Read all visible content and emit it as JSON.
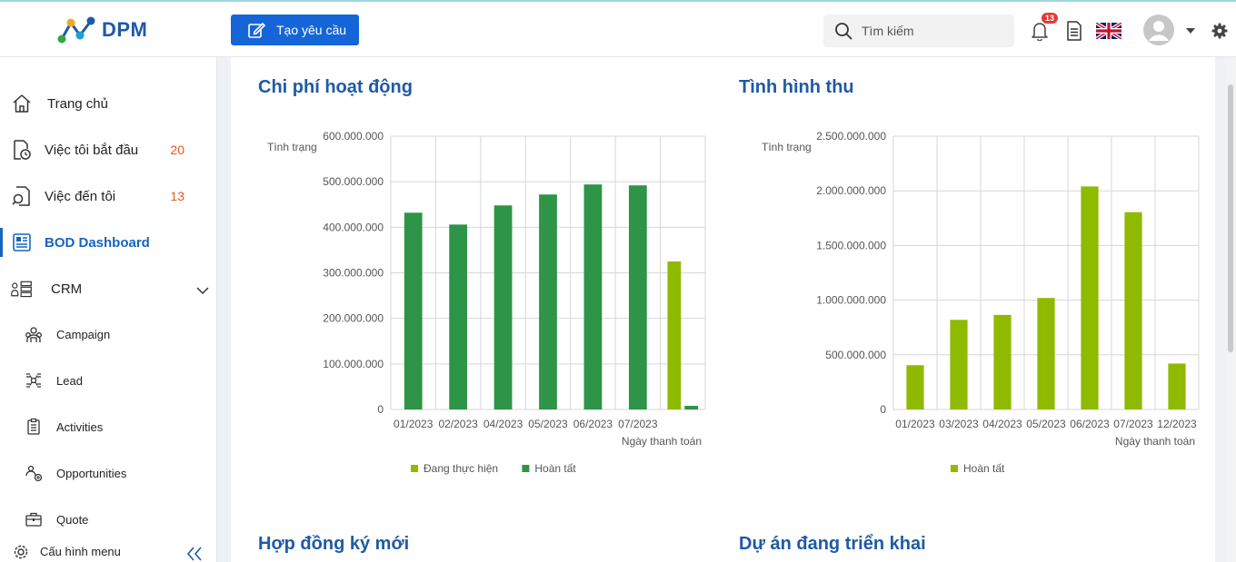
{
  "header": {
    "app_name": "DPM",
    "create_button_label": "Tạo yêu cầu",
    "search_placeholder": "Tìm kiếm",
    "notification_count": "13"
  },
  "sidebar": {
    "items": [
      {
        "label": "Trang chủ",
        "count": "",
        "icon": "home-icon"
      },
      {
        "label": "Việc tôi bắt đầu",
        "count": "20",
        "icon": "file-clock-icon"
      },
      {
        "label": "Việc đến tôi",
        "count": "13",
        "icon": "file-search-icon"
      },
      {
        "label": "BOD Dashboard",
        "count": "",
        "icon": "dashboard-icon"
      },
      {
        "label": "CRM",
        "count": "",
        "icon": "crm-icon"
      }
    ],
    "crm_subitems": [
      {
        "label": "Campaign",
        "icon": "campaign-icon"
      },
      {
        "label": "Lead",
        "icon": "lead-icon"
      },
      {
        "label": "Activities",
        "icon": "activities-icon"
      },
      {
        "label": "Opportunities",
        "icon": "opportunities-icon"
      },
      {
        "label": "Quote",
        "icon": "quote-icon"
      }
    ],
    "footer_label": "Cấu hình menu"
  },
  "cards": {
    "chi_phi_title": "Chi phí hoạt động",
    "tinh_hinh_thu_title": "Tình hình thu",
    "hop_dong_title": "Hợp đồng ký mới",
    "du_an_title": "Dự án đang triển khai"
  },
  "colors": {
    "dark_green": "#2e9447",
    "light_green": "#8fba00",
    "title_blue": "#1f5aa6",
    "accent_blue": "#1565d8"
  },
  "chart_data": [
    {
      "type": "bar",
      "title": "Chi phí hoạt động",
      "ylabel": "Tình trạng",
      "xlabel": "Ngày thanh toán",
      "ylim": [
        0,
        600000000
      ],
      "yticks": [
        0,
        100000000,
        200000000,
        300000000,
        400000000,
        500000000,
        600000000
      ],
      "ytick_labels": [
        "0",
        "100.000.000",
        "200.000.000",
        "300.000.000",
        "400.000.000",
        "500.000.000",
        "600.000.000"
      ],
      "categories": [
        "01/2023",
        "02/2023",
        "04/2023",
        "05/2023",
        "06/2023",
        "07/2023",
        ""
      ],
      "series": [
        {
          "name": "Đang thực hiện",
          "color": "#8fba00",
          "values": [
            null,
            null,
            null,
            null,
            null,
            null,
            325000000
          ]
        },
        {
          "name": "Hoàn tất",
          "color": "#2e9447",
          "values": [
            432000000,
            406000000,
            448000000,
            472000000,
            494000000,
            492000000,
            8000000
          ]
        }
      ],
      "legend": "bottom",
      "grid": true
    },
    {
      "type": "bar",
      "title": "Tình hình thu",
      "ylabel": "Tình trạng",
      "xlabel": "Ngày thanh toán",
      "ylim": [
        0,
        2500000000
      ],
      "yticks": [
        0,
        500000000,
        1000000000,
        1500000000,
        2000000000,
        2500000000
      ],
      "ytick_labels": [
        "0",
        "500.000.000",
        "1.000.000.000",
        "1.500.000.000",
        "2.000.000.000",
        "2.500.000.000"
      ],
      "categories": [
        "01/2023",
        "03/2023",
        "04/2023",
        "05/2023",
        "06/2023",
        "07/2023",
        "12/2023"
      ],
      "series": [
        {
          "name": "Hoàn tất",
          "color": "#8fba00",
          "values": [
            405000000,
            820000000,
            865000000,
            1020000000,
            2040000000,
            1805000000,
            420000000
          ]
        }
      ],
      "legend": "bottom",
      "grid": true
    }
  ]
}
